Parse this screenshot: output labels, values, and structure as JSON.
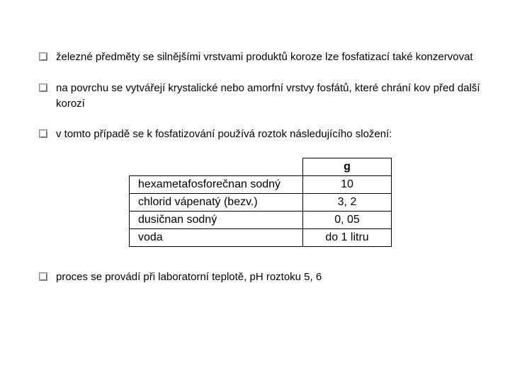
{
  "bullets": [
    "železné předměty se silnějšími vrstvami produktů koroze lze fosfatizací také konzervovat",
    "na povrchu se vytvářejí krystalické nebo amorfní vrstvy fosfátů, které chrání kov před další korozí",
    "v tomto případě se k fosfatizování používá roztok následujícího složení:",
    "proces se provádí při laboratorní teplotě, pH roztoku 5, 6"
  ],
  "table": {
    "header_value": "g",
    "rows": [
      {
        "name": "hexametafosforečnan sodný",
        "value": "10"
      },
      {
        "name": "chlorid vápenatý (bezv.)",
        "value": "3, 2"
      },
      {
        "name": "dusičnan sodný",
        "value": "0, 05"
      },
      {
        "name": "voda",
        "value": "do 1 litru"
      }
    ],
    "col_name_width": 220,
    "col_val_width": 100,
    "border_color": "#000000",
    "font_size": 16
  },
  "colors": {
    "background": "#ffffff",
    "text": "#000000"
  }
}
